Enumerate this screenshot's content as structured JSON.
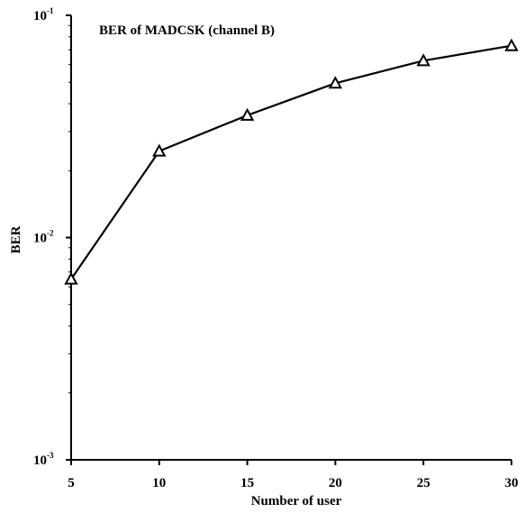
{
  "chart_data": {
    "type": "line",
    "title": "",
    "xlabel": "Number of user",
    "ylabel": "BER",
    "x": [
      5,
      10,
      15,
      20,
      25,
      30
    ],
    "xlim": [
      5,
      30
    ],
    "ylim": [
      0.001,
      0.1
    ],
    "yscale": "log",
    "grid": false,
    "x_ticks": [
      "5",
      "10",
      "15",
      "20",
      "25",
      "30"
    ],
    "y_ticks": [
      {
        "value": 0.1,
        "base": "10",
        "exp": "-1"
      },
      {
        "value": 0.01,
        "base": "10",
        "exp": "-2"
      },
      {
        "value": 0.001,
        "base": "10",
        "exp": "-3"
      }
    ],
    "legend_position": "top-left",
    "series": [
      {
        "name": "BER of MADCSK (channel B)",
        "marker": "triangle",
        "color": "#000000",
        "values": [
          0.0065,
          0.0245,
          0.0355,
          0.0495,
          0.0625,
          0.073
        ]
      }
    ]
  }
}
